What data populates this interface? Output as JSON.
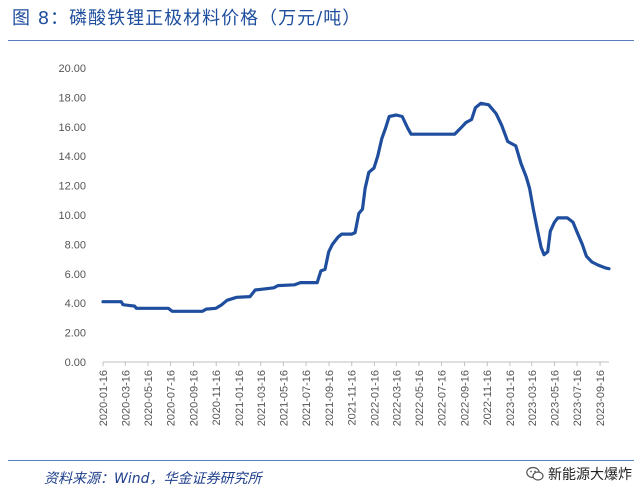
{
  "title": "图 8：磷酸铁锂正极材料价格（万元/吨）",
  "source": "资料来源：Wind，华金证券研究所",
  "watermark": "新能源大爆炸",
  "colors": {
    "line": "#1f4e9e",
    "title": "#1f4e9e",
    "rule": "#5a7fbf"
  },
  "chart_data": {
    "type": "line",
    "title": "",
    "xlabel": "",
    "ylabel": "",
    "ylim": [
      0,
      20
    ],
    "yticks": [
      "0.00",
      "2.00",
      "4.00",
      "6.00",
      "8.00",
      "10.00",
      "12.00",
      "14.00",
      "16.00",
      "18.00",
      "20.00"
    ],
    "x_tick_labels": [
      "2020-01-16",
      "2020-03-16",
      "2020-05-16",
      "2020-07-16",
      "2020-09-16",
      "2020-11-16",
      "2021-01-16",
      "2021-03-16",
      "2021-05-16",
      "2021-07-16",
      "2021-09-16",
      "2021-11-16",
      "2022-01-16",
      "2022-03-16",
      "2022-05-16",
      "2022-07-16",
      "2022-09-16",
      "2022-11-16",
      "2023-01-16",
      "2023-03-16",
      "2023-05-16",
      "2023-07-16",
      "2023-09-16"
    ],
    "grid": false,
    "series": [
      {
        "name": "",
        "points": [
          [
            "2020-01-16",
            4.1
          ],
          [
            "2020-03-05",
            4.1
          ],
          [
            "2020-03-10",
            3.9
          ],
          [
            "2020-04-10",
            3.8
          ],
          [
            "2020-04-15",
            3.65
          ],
          [
            "2020-07-10",
            3.65
          ],
          [
            "2020-07-20",
            3.45
          ],
          [
            "2020-10-10",
            3.45
          ],
          [
            "2020-10-20",
            3.6
          ],
          [
            "2020-11-15",
            3.65
          ],
          [
            "2020-12-01",
            3.9
          ],
          [
            "2020-12-15",
            4.2
          ],
          [
            "2021-01-10",
            4.4
          ],
          [
            "2021-02-15",
            4.45
          ],
          [
            "2021-03-01",
            4.9
          ],
          [
            "2021-03-20",
            4.95
          ],
          [
            "2021-04-20",
            5.05
          ],
          [
            "2021-05-01",
            5.2
          ],
          [
            "2021-06-15",
            5.25
          ],
          [
            "2021-07-01",
            5.4
          ],
          [
            "2021-08-15",
            5.4
          ],
          [
            "2021-08-25",
            6.2
          ],
          [
            "2021-09-05",
            6.3
          ],
          [
            "2021-09-15",
            7.5
          ],
          [
            "2021-09-25",
            8.0
          ],
          [
            "2021-10-10",
            8.5
          ],
          [
            "2021-10-20",
            8.7
          ],
          [
            "2021-11-16",
            8.7
          ],
          [
            "2021-11-25",
            8.8
          ],
          [
            "2021-12-05",
            10.1
          ],
          [
            "2021-12-15",
            10.4
          ],
          [
            "2021-12-22",
            11.8
          ],
          [
            "2022-01-01",
            12.9
          ],
          [
            "2022-01-15",
            13.2
          ],
          [
            "2022-01-25",
            14.0
          ],
          [
            "2022-02-05",
            15.2
          ],
          [
            "2022-02-15",
            15.9
          ],
          [
            "2022-02-25",
            16.7
          ],
          [
            "2022-03-16",
            16.8
          ],
          [
            "2022-04-01",
            16.7
          ],
          [
            "2022-04-16",
            15.9
          ],
          [
            "2022-04-25",
            15.5
          ],
          [
            "2022-08-20",
            15.5
          ],
          [
            "2022-09-05",
            15.9
          ],
          [
            "2022-09-20",
            16.3
          ],
          [
            "2022-10-05",
            16.5
          ],
          [
            "2022-10-15",
            17.3
          ],
          [
            "2022-10-30",
            17.6
          ],
          [
            "2022-11-20",
            17.5
          ],
          [
            "2022-12-10",
            16.9
          ],
          [
            "2022-12-25",
            16.1
          ],
          [
            "2023-01-10",
            15.0
          ],
          [
            "2023-02-01",
            14.7
          ],
          [
            "2023-02-15",
            13.5
          ],
          [
            "2023-03-01",
            12.6
          ],
          [
            "2023-03-10",
            11.8
          ],
          [
            "2023-03-20",
            10.4
          ],
          [
            "2023-04-01",
            8.9
          ],
          [
            "2023-04-10",
            7.8
          ],
          [
            "2023-04-18",
            7.3
          ],
          [
            "2023-04-28",
            7.5
          ],
          [
            "2023-05-05",
            8.9
          ],
          [
            "2023-05-16",
            9.5
          ],
          [
            "2023-05-25",
            9.8
          ],
          [
            "2023-06-20",
            9.8
          ],
          [
            "2023-07-05",
            9.5
          ],
          [
            "2023-07-15",
            8.9
          ],
          [
            "2023-07-30",
            8.0
          ],
          [
            "2023-08-10",
            7.2
          ],
          [
            "2023-08-25",
            6.8
          ],
          [
            "2023-09-10",
            6.6
          ],
          [
            "2023-09-30",
            6.4
          ],
          [
            "2023-10-10",
            6.35
          ]
        ]
      }
    ]
  }
}
